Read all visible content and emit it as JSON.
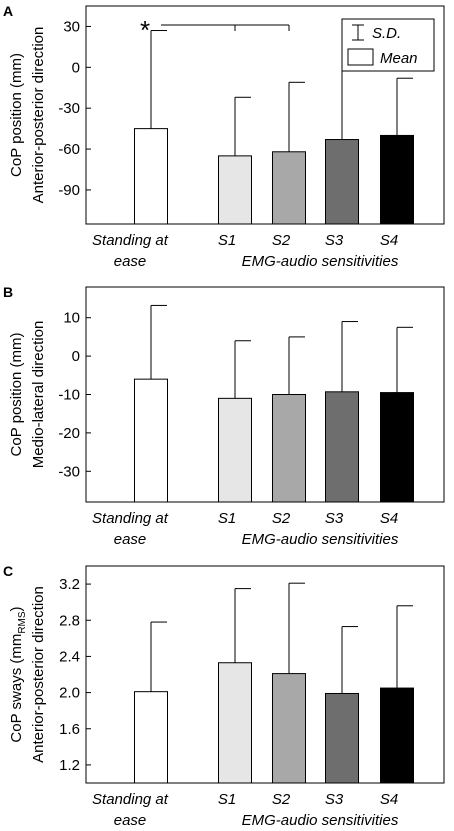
{
  "legend": {
    "sd_label": "S.D.",
    "mean_label": "Mean"
  },
  "chart_data": [
    {
      "panel_letter": "A",
      "type": "bar",
      "ylabel_line1": "CoP position (mm)",
      "ylabel_line2": "Anterior-posterior direction",
      "ylim": [
        -115,
        45
      ],
      "yticks": [
        30,
        0,
        -30,
        -60,
        -90
      ],
      "ytick_labels": [
        "30",
        "0",
        "-30",
        "-60",
        "-90"
      ],
      "categories": [
        "Standing at ease",
        "S1",
        "S2",
        "S3",
        "S4"
      ],
      "category_label_lines": [
        [
          "Standing at",
          "ease"
        ],
        [
          "S1"
        ],
        [
          "S2"
        ],
        [
          "S3"
        ],
        [
          "S4"
        ]
      ],
      "group_label": "EMG-audio sensitivities",
      "colors": [
        "#ffffff",
        "#e6e6e6",
        "#a8a8a8",
        "#6e6e6e",
        "#000000"
      ],
      "values": [
        -45,
        -65,
        -62,
        -53,
        -50
      ],
      "sd_upper": [
        27,
        -22,
        -11,
        0,
        -8
      ],
      "significance": {
        "marker": "*",
        "from_category": "Standing at ease",
        "to_categories": [
          "S1",
          "S2"
        ]
      },
      "legend_placement": "top-right",
      "grid": false
    },
    {
      "panel_letter": "B",
      "type": "bar",
      "ylabel_line1": "CoP position (mm)",
      "ylabel_line2": "Medio-lateral direction",
      "ylim": [
        -38,
        18
      ],
      "yticks": [
        10,
        0,
        -10,
        -20,
        -30
      ],
      "ytick_labels": [
        "10",
        "0",
        "-10",
        "-20",
        "-30"
      ],
      "categories": [
        "Standing at ease",
        "S1",
        "S2",
        "S3",
        "S4"
      ],
      "category_label_lines": [
        [
          "Standing at",
          "ease"
        ],
        [
          "S1"
        ],
        [
          "S2"
        ],
        [
          "S3"
        ],
        [
          "S4"
        ]
      ],
      "group_label": "EMG-audio sensitivities",
      "colors": [
        "#ffffff",
        "#e6e6e6",
        "#a8a8a8",
        "#6e6e6e",
        "#000000"
      ],
      "values": [
        -6,
        -11,
        -10,
        -9.3,
        -9.5
      ],
      "sd_upper": [
        13.2,
        4,
        5,
        9,
        7.5
      ],
      "grid": false
    },
    {
      "panel_letter": "C",
      "type": "bar",
      "ylabel_line1": "CoP sways (mm",
      "ylabel_sub": "RMS",
      "ylabel_line1_end": ")",
      "ylabel_line2": "Anterior-posterior direction",
      "ylim": [
        1.0,
        3.4
      ],
      "yticks": [
        3.2,
        2.8,
        2.4,
        2.0,
        1.6,
        1.2
      ],
      "ytick_labels": [
        "3.2",
        "2.8",
        "2.4",
        "2.0",
        "1.6",
        "1.2"
      ],
      "categories": [
        "Standing at ease",
        "S1",
        "S2",
        "S3",
        "S4"
      ],
      "category_label_lines": [
        [
          "Standing at",
          "ease"
        ],
        [
          "S1"
        ],
        [
          "S2"
        ],
        [
          "S3"
        ],
        [
          "S4"
        ]
      ],
      "group_label": "EMG-audio sensitivities",
      "colors": [
        "#ffffff",
        "#e6e6e6",
        "#a8a8a8",
        "#6e6e6e",
        "#000000"
      ],
      "values": [
        2.01,
        2.33,
        2.21,
        1.99,
        2.05
      ],
      "sd_upper": [
        2.78,
        3.15,
        3.21,
        2.73,
        2.96
      ],
      "grid": false
    }
  ]
}
